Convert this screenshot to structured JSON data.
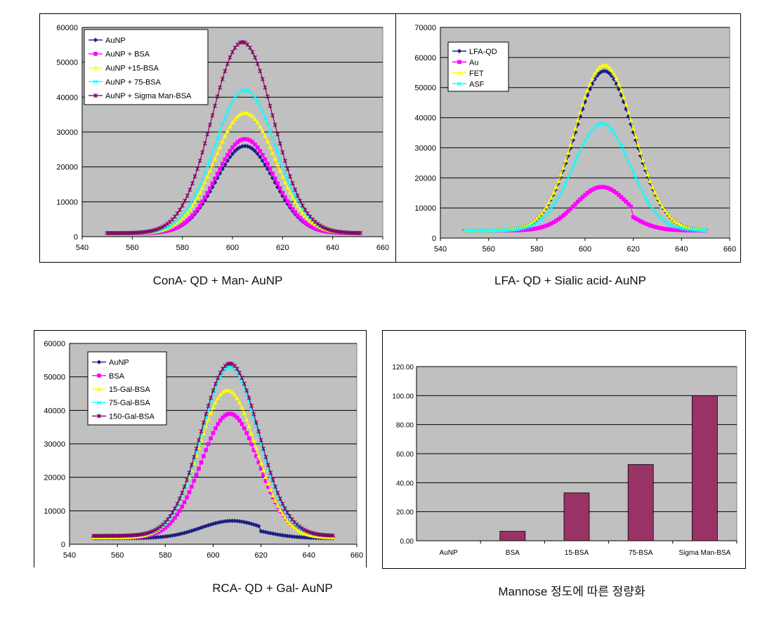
{
  "captions": {
    "c1": "ConA- QD  +  Man- AuNP",
    "c2": "LFA- QD + Sialic acid- AuNP",
    "c3": "RCA- QD + Gal- AuNP",
    "c4": "Mannose 정도에 따른 정량화"
  },
  "chart_data": [
    {
      "type": "line",
      "id": "c1",
      "title": "",
      "xlim": [
        540,
        660
      ],
      "ylim": [
        0,
        60000
      ],
      "xticks": [
        540,
        560,
        580,
        600,
        620,
        640,
        660
      ],
      "yticks": [
        0,
        10000,
        20000,
        30000,
        40000,
        50000,
        60000
      ],
      "grid": true,
      "legend": "top-left",
      "x_range": [
        550,
        651
      ],
      "series": [
        {
          "name": "AuNP",
          "peak": 26000,
          "center": 605,
          "sigma": 11.5,
          "base": 1000,
          "color": "#1a1f80",
          "marker": "diamond"
        },
        {
          "name": "AuNP + BSA",
          "peak": 28000,
          "center": 605,
          "sigma": 11.5,
          "base": 1000,
          "color": "#ff00ff",
          "marker": "square"
        },
        {
          "name": "AuNP +15-BSA",
          "peak": 35500,
          "center": 605,
          "sigma": 12.2,
          "base": 1000,
          "color": "#ffff00",
          "marker": "triangle"
        },
        {
          "name": "AuNP + 75-BSA",
          "peak": 42000,
          "center": 605,
          "sigma": 12.2,
          "base": 1000,
          "color": "#00ffff",
          "marker": "x"
        },
        {
          "name": "AuNP + Sigma Man-BSA",
          "peak": 55800,
          "center": 604,
          "sigma": 12.2,
          "base": 1000,
          "color": "#800060",
          "marker": "star"
        }
      ]
    },
    {
      "type": "line",
      "id": "c2",
      "title": "",
      "xlim": [
        540,
        660
      ],
      "ylim": [
        0,
        70000
      ],
      "xticks": [
        540,
        560,
        580,
        600,
        620,
        640,
        660
      ],
      "yticks": [
        0,
        10000,
        20000,
        30000,
        40000,
        50000,
        60000,
        70000
      ],
      "grid": true,
      "legend": "top-left",
      "x_range": [
        550,
        650
      ],
      "series": [
        {
          "name": "LFA-QD",
          "peak": 55500,
          "center": 608,
          "sigma": 12.2,
          "base": 2500,
          "color": "#1a1f80",
          "marker": "diamond"
        },
        {
          "name": "Au",
          "peak": 17000,
          "center": 607,
          "sigma": 11.0,
          "base": 2500,
          "color": "#ff00ff",
          "marker": "square",
          "drop_at": 620
        },
        {
          "name": "FET",
          "peak": 57500,
          "center": 608,
          "sigma": 12.2,
          "base": 2500,
          "color": "#ffff00",
          "marker": "triangle"
        },
        {
          "name": "ASF",
          "peak": 38000,
          "center": 607,
          "sigma": 11.8,
          "base": 2500,
          "color": "#00ffff",
          "marker": "x"
        }
      ]
    },
    {
      "type": "line",
      "id": "c3",
      "title": "",
      "xlim": [
        540,
        660
      ],
      "ylim": [
        0,
        60000
      ],
      "xticks": [
        540,
        560,
        580,
        600,
        620,
        640,
        660
      ],
      "yticks": [
        0,
        10000,
        20000,
        30000,
        40000,
        50000,
        60000
      ],
      "grid": true,
      "legend": "top-left",
      "x_range": [
        550,
        650
      ],
      "series": [
        {
          "name": "AuNP",
          "peak": 7000,
          "center": 608,
          "sigma": 13.0,
          "base": 1800,
          "color": "#1a1f80",
          "marker": "diamond",
          "drop_at": 620
        },
        {
          "name": "BSA",
          "peak": 39000,
          "center": 607,
          "sigma": 12.0,
          "base": 2000,
          "color": "#ff00ff",
          "marker": "square"
        },
        {
          "name": "15-Gal-BSA",
          "peak": 46000,
          "center": 606,
          "sigma": 12.0,
          "base": 2000,
          "color": "#ffff00",
          "marker": "triangle"
        },
        {
          "name": "75-Gal-BSA",
          "peak": 53000,
          "center": 607,
          "sigma": 11.8,
          "base": 2500,
          "color": "#00ffff",
          "marker": "x"
        },
        {
          "name": "150-Gal-BSA",
          "peak": 54000,
          "center": 607,
          "sigma": 12.0,
          "base": 2500,
          "color": "#800060",
          "marker": "star"
        }
      ]
    },
    {
      "type": "bar",
      "id": "c4",
      "title": "",
      "categories": [
        "AuNP",
        "BSA",
        "15-BSA",
        "75-BSA",
        "Sigma Man-BSA"
      ],
      "values": [
        0,
        6.5,
        33,
        52.5,
        100
      ],
      "ylim": [
        0,
        120
      ],
      "yticks": [
        "0.00",
        "20.00",
        "40.00",
        "60.00",
        "80.00",
        "100.00",
        "120.00"
      ],
      "grid": true,
      "bar_color": "#993366"
    }
  ]
}
